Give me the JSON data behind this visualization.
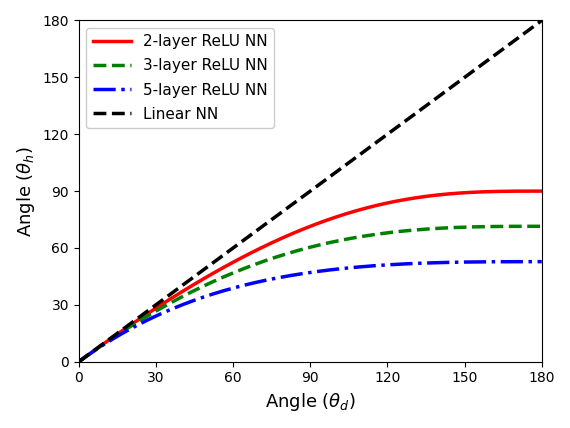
{
  "title": "",
  "xlabel": "Angle ($\\theta_d$)",
  "ylabel": "Angle ($\\theta_h$)",
  "xlim": [
    0,
    180
  ],
  "ylim": [
    0,
    180
  ],
  "xticks": [
    0,
    30,
    60,
    90,
    120,
    150,
    180
  ],
  "yticks": [
    0,
    30,
    60,
    90,
    120,
    150,
    180
  ],
  "legend_entries": [
    {
      "label": "2-layer ReLU NN",
      "color": "red",
      "linestyle": "-",
      "linewidth": 2.5
    },
    {
      "label": "3-layer ReLU NN",
      "color": "green",
      "linestyle": "--",
      "linewidth": 2.5
    },
    {
      "label": "5-layer ReLU NN",
      "color": "blue",
      "linestyle": "-.",
      "linewidth": 2.5
    },
    {
      "label": "Linear NN",
      "color": "black",
      "linestyle": "--",
      "linewidth": 2.5
    }
  ],
  "figsize": [
    5.7,
    4.28
  ],
  "dpi": 100
}
